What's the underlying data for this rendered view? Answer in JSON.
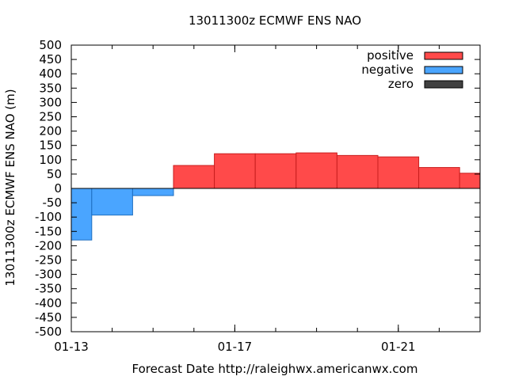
{
  "chart_data": {
    "type": "bar",
    "title": "13011300z ECMWF ENS NAO",
    "xlabel": "Forecast Date http://raleighwx.americanwx.com",
    "ylabel": "13011300z ECMWF ENS NAO (m)",
    "ylim": [
      -500,
      500
    ],
    "yticks": [
      500,
      450,
      400,
      350,
      300,
      250,
      200,
      150,
      100,
      50,
      0,
      -50,
      -100,
      -150,
      -200,
      -250,
      -300,
      -350,
      -400,
      -450,
      -500
    ],
    "x_start": "01-13",
    "x_end": "01-23",
    "x_tick_labels": [
      "01-13",
      "01-17",
      "01-21"
    ],
    "bars": [
      {
        "start": "01-13",
        "end": "01-13 12z",
        "value": -180
      },
      {
        "start": "01-13 12z",
        "end": "01-14 12z",
        "value": -93
      },
      {
        "start": "01-14 12z",
        "end": "01-15 12z",
        "value": -25
      },
      {
        "start": "01-15 12z",
        "end": "01-16 12z",
        "value": 80
      },
      {
        "start": "01-16 12z",
        "end": "01-17 12z",
        "value": 121
      },
      {
        "start": "01-17 12z",
        "end": "01-18 12z",
        "value": 121
      },
      {
        "start": "01-18 12z",
        "end": "01-19 12z",
        "value": 124
      },
      {
        "start": "01-19 12z",
        "end": "01-20 12z",
        "value": 115
      },
      {
        "start": "01-20 12z",
        "end": "01-21 12z",
        "value": 110
      },
      {
        "start": "01-21 12z",
        "end": "01-22 12z",
        "value": 73
      },
      {
        "start": "01-22 12z",
        "end": "01-23",
        "value": 53
      }
    ],
    "legend": {
      "position": "top-right",
      "entries": [
        {
          "label": "positive",
          "color": "#ff4a4a"
        },
        {
          "label": "negative",
          "color": "#4aa5ff"
        },
        {
          "label": "zero",
          "color": "#404040"
        }
      ]
    },
    "grid": false
  }
}
